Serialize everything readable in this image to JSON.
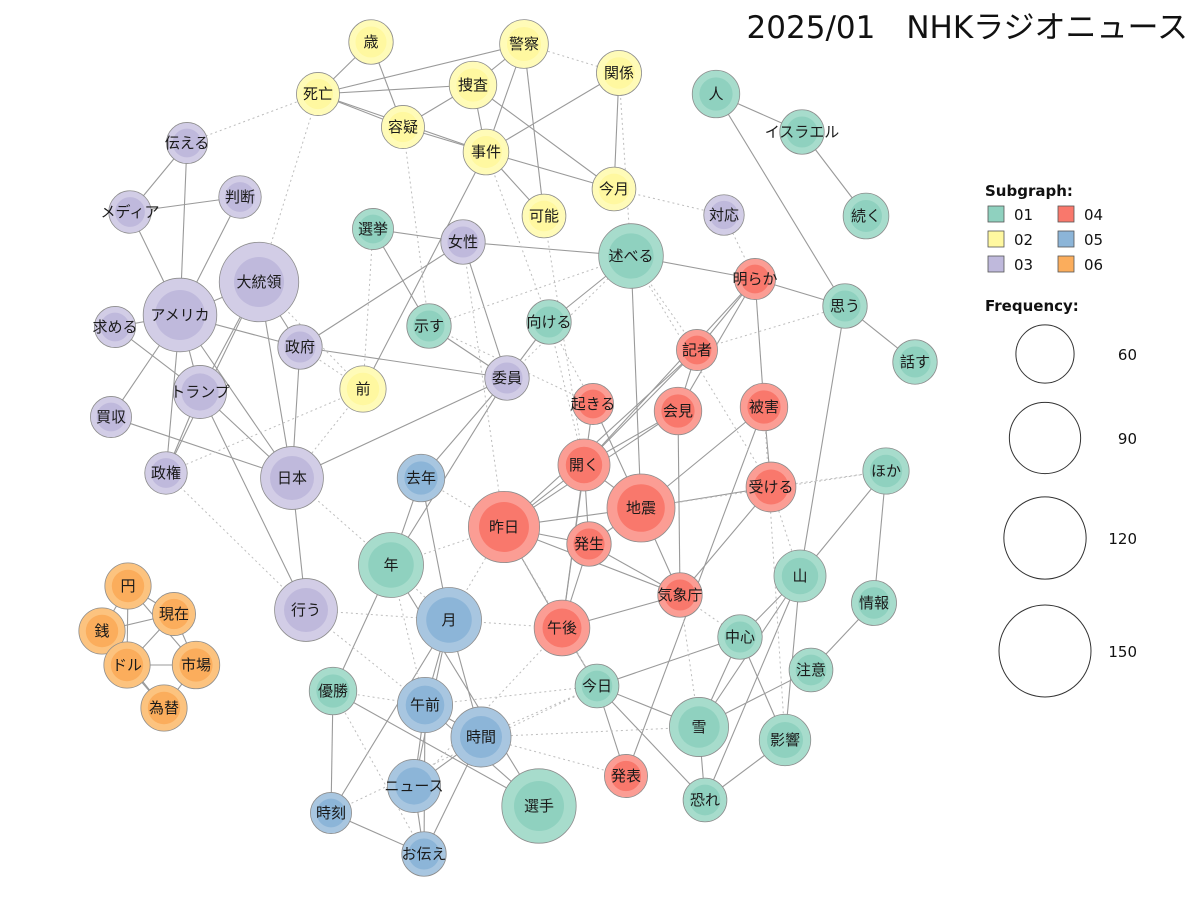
{
  "title": "2025/01　NHKラジオニュース",
  "legend": {
    "subgraph_title": "Subgraph:",
    "frequency_title": "Frequency:",
    "groups": [
      {
        "id": "01",
        "label": "01",
        "fill": "#a7dccc",
        "core": "#8fd1bf"
      },
      {
        "id": "02",
        "label": "02",
        "fill": "#fffbb8",
        "core": "#fff8a0"
      },
      {
        "id": "03",
        "label": "03",
        "fill": "#d2cde6",
        "core": "#bfb9dc"
      },
      {
        "id": "04",
        "label": "04",
        "fill": "#fb9d94",
        "core": "#f9786c"
      },
      {
        "id": "05",
        "label": "05",
        "fill": "#a8c6e0",
        "core": "#8cb5d8"
      },
      {
        "id": "06",
        "label": "06",
        "fill": "#fcc37f",
        "core": "#fbad5c"
      }
    ],
    "frequencies": [
      {
        "value": 60,
        "label": "60"
      },
      {
        "value": 90,
        "label": "90"
      },
      {
        "value": 120,
        "label": "120"
      },
      {
        "value": 150,
        "label": "150"
      }
    ]
  },
  "nodes": [
    {
      "id": "人",
      "label": "人",
      "group": "01",
      "freq": 40
    },
    {
      "id": "イスラエル",
      "label": "イスラエル",
      "group": "01",
      "freq": 35
    },
    {
      "id": "続く",
      "label": "続く",
      "group": "01",
      "freq": 37
    },
    {
      "id": "思う",
      "label": "思う",
      "group": "01",
      "freq": 35
    },
    {
      "id": "話す",
      "label": "話す",
      "group": "01",
      "freq": 35
    },
    {
      "id": "ほか",
      "label": "ほか",
      "group": "01",
      "freq": 38
    },
    {
      "id": "情報",
      "label": "情報",
      "group": "01",
      "freq": 36
    },
    {
      "id": "山",
      "label": "山",
      "group": "01",
      "freq": 48
    },
    {
      "id": "注意",
      "label": "注意",
      "group": "01",
      "freq": 34
    },
    {
      "id": "中心",
      "label": "中心",
      "group": "01",
      "freq": 35
    },
    {
      "id": "影響",
      "label": "影響",
      "group": "01",
      "freq": 47
    },
    {
      "id": "雪",
      "label": "雪",
      "group": "01",
      "freq": 62
    },
    {
      "id": "恐れ",
      "label": "恐れ",
      "group": "01",
      "freq": 34
    },
    {
      "id": "今日",
      "label": "今日",
      "group": "01",
      "freq": 34
    },
    {
      "id": "選手",
      "label": "選手",
      "group": "01",
      "freq": 98
    },
    {
      "id": "優勝",
      "label": "優勝",
      "group": "01",
      "freq": 40
    },
    {
      "id": "年",
      "label": "年",
      "group": "01",
      "freq": 75
    },
    {
      "id": "選挙",
      "label": "選挙",
      "group": "01",
      "freq": 30
    },
    {
      "id": "示す",
      "label": "示す",
      "group": "01",
      "freq": 35
    },
    {
      "id": "向ける",
      "label": "向ける",
      "group": "01",
      "freq": 35
    },
    {
      "id": "述べる",
      "label": "述べる",
      "group": "01",
      "freq": 74
    },
    {
      "id": "歳",
      "label": "歳",
      "group": "02",
      "freq": 35
    },
    {
      "id": "警察",
      "label": "警察",
      "group": "02",
      "freq": 42
    },
    {
      "id": "関係",
      "label": "関係",
      "group": "02",
      "freq": 36
    },
    {
      "id": "死亡",
      "label": "死亡",
      "group": "02",
      "freq": 33
    },
    {
      "id": "捜査",
      "label": "捜査",
      "group": "02",
      "freq": 40
    },
    {
      "id": "容疑",
      "label": "容疑",
      "group": "02",
      "freq": 33
    },
    {
      "id": "事件",
      "label": "事件",
      "group": "02",
      "freq": 37
    },
    {
      "id": "今月",
      "label": "今月",
      "group": "02",
      "freq": 34
    },
    {
      "id": "可能",
      "label": "可能",
      "group": "02",
      "freq": 34
    },
    {
      "id": "前",
      "label": "前",
      "group": "02",
      "freq": 38
    },
    {
      "id": "伝える",
      "label": "伝える",
      "group": "03",
      "freq": 30
    },
    {
      "id": "判断",
      "label": "判断",
      "group": "03",
      "freq": 32
    },
    {
      "id": "メディア",
      "label": "メディア",
      "group": "03",
      "freq": 32
    },
    {
      "id": "大統領",
      "label": "大統領",
      "group": "03",
      "freq": 112
    },
    {
      "id": "アメリカ",
      "label": "アメリカ",
      "group": "03",
      "freq": 96
    },
    {
      "id": "求める",
      "label": "求める",
      "group": "03",
      "freq": 30
    },
    {
      "id": "政府",
      "label": "政府",
      "group": "03",
      "freq": 35
    },
    {
      "id": "トランプ",
      "label": "トランプ",
      "group": "03",
      "freq": 50
    },
    {
      "id": "買収",
      "label": "買収",
      "group": "03",
      "freq": 30
    },
    {
      "id": "政権",
      "label": "政権",
      "group": "03",
      "freq": 32
    },
    {
      "id": "日本",
      "label": "日本",
      "group": "03",
      "freq": 70
    },
    {
      "id": "行う",
      "label": "行う",
      "group": "03",
      "freq": 70
    },
    {
      "id": "女性",
      "label": "女性",
      "group": "03",
      "freq": 35
    },
    {
      "id": "委員",
      "label": "委員",
      "group": "03",
      "freq": 35
    },
    {
      "id": "対応",
      "label": "対応",
      "group": "03",
      "freq": 29
    },
    {
      "id": "明らか",
      "label": "明らか",
      "group": "04",
      "freq": 30
    },
    {
      "id": "記者",
      "label": "記者",
      "group": "04",
      "freq": 30
    },
    {
      "id": "起きる",
      "label": "起きる",
      "group": "04",
      "freq": 30
    },
    {
      "id": "会見",
      "label": "会見",
      "group": "04",
      "freq": 40
    },
    {
      "id": "被害",
      "label": "被害",
      "group": "04",
      "freq": 40
    },
    {
      "id": "開く",
      "label": "開く",
      "group": "04",
      "freq": 48
    },
    {
      "id": "地震",
      "label": "地震",
      "group": "04",
      "freq": 82
    },
    {
      "id": "受ける",
      "label": "受ける",
      "group": "04",
      "freq": 44
    },
    {
      "id": "昨日",
      "label": "昨日",
      "group": "04",
      "freq": 90
    },
    {
      "id": "発生",
      "label": "発生",
      "group": "04",
      "freq": 35
    },
    {
      "id": "気象庁",
      "label": "気象庁",
      "group": "04",
      "freq": 35
    },
    {
      "id": "午後",
      "label": "午後",
      "group": "04",
      "freq": 55
    },
    {
      "id": "発表",
      "label": "発表",
      "group": "04",
      "freq": 33
    },
    {
      "id": "去年",
      "label": "去年",
      "group": "05",
      "freq": 40
    },
    {
      "id": "月",
      "label": "月",
      "group": "05",
      "freq": 75
    },
    {
      "id": "午前",
      "label": "午前",
      "group": "05",
      "freq": 54
    },
    {
      "id": "時間",
      "label": "時間",
      "group": "05",
      "freq": 64
    },
    {
      "id": "ニュース",
      "label": "ニュース",
      "group": "05",
      "freq": 50
    },
    {
      "id": "時刻",
      "label": "時刻",
      "group": "05",
      "freq": 30
    },
    {
      "id": "お伝え",
      "label": "お伝え",
      "group": "05",
      "freq": 35
    },
    {
      "id": "円",
      "label": "円",
      "group": "06",
      "freq": 38
    },
    {
      "id": "現在",
      "label": "現在",
      "group": "06",
      "freq": 33
    },
    {
      "id": "銭",
      "label": "銭",
      "group": "06",
      "freq": 38
    },
    {
      "id": "ドル",
      "label": "ドル",
      "group": "06",
      "freq": 38
    },
    {
      "id": "市場",
      "label": "市場",
      "group": "06",
      "freq": 40
    },
    {
      "id": "為替",
      "label": "為替",
      "group": "06",
      "freq": 38
    }
  ],
  "edges": [
    [
      "人",
      "イスラエル",
      "s"
    ],
    [
      "人",
      "思う",
      "s"
    ],
    [
      "イスラエル",
      "続く",
      "s"
    ],
    [
      "思う",
      "話す",
      "s"
    ],
    [
      "思う",
      "明らか",
      "s"
    ],
    [
      "思う",
      "山",
      "s"
    ],
    [
      "ほか",
      "情報",
      "s"
    ],
    [
      "ほか",
      "山",
      "s"
    ],
    [
      "情報",
      "注意",
      "s"
    ],
    [
      "山",
      "中心",
      "s"
    ],
    [
      "山",
      "雪",
      "s"
    ],
    [
      "山",
      "影響",
      "s"
    ],
    [
      "山",
      "恐れ",
      "s"
    ],
    [
      "中心",
      "雪",
      "s"
    ],
    [
      "中心",
      "今日",
      "s"
    ],
    [
      "中心",
      "影響",
      "s"
    ],
    [
      "注意",
      "雪",
      "s"
    ],
    [
      "影響",
      "恐れ",
      "s"
    ],
    [
      "雪",
      "恐れ",
      "s"
    ],
    [
      "今日",
      "雪",
      "s"
    ],
    [
      "今日",
      "恐れ",
      "s"
    ],
    [
      "今日",
      "発表",
      "s"
    ],
    [
      "今日",
      "午後",
      "s"
    ],
    [
      "選手",
      "優勝",
      "s"
    ],
    [
      "選手",
      "年",
      "s"
    ],
    [
      "選手",
      "午前",
      "s"
    ],
    [
      "年",
      "優勝",
      "s"
    ],
    [
      "年",
      "去年",
      "s"
    ],
    [
      "選挙",
      "女性",
      "s"
    ],
    [
      "選挙",
      "示す",
      "s"
    ],
    [
      "女性",
      "述べる",
      "s"
    ],
    [
      "女性",
      "委員",
      "s"
    ],
    [
      "示す",
      "委員",
      "s"
    ],
    [
      "向ける",
      "述べる",
      "s"
    ],
    [
      "向ける",
      "委員",
      "s"
    ],
    [
      "述べる",
      "明らか",
      "s"
    ],
    [
      "述べる",
      "示す",
      "d"
    ],
    [
      "歳",
      "死亡",
      "s"
    ],
    [
      "歳",
      "容疑",
      "s"
    ],
    [
      "死亡",
      "警察",
      "s"
    ],
    [
      "死亡",
      "捜査",
      "s"
    ],
    [
      "死亡",
      "事件",
      "s"
    ],
    [
      "死亡",
      "容疑",
      "s"
    ],
    [
      "警察",
      "捜査",
      "s"
    ],
    [
      "警察",
      "事件",
      "s"
    ],
    [
      "警察",
      "可能",
      "s"
    ],
    [
      "捜査",
      "容疑",
      "s"
    ],
    [
      "捜査",
      "事件",
      "s"
    ],
    [
      "捜査",
      "今月",
      "s"
    ],
    [
      "関係",
      "事件",
      "s"
    ],
    [
      "関係",
      "今月",
      "s"
    ],
    [
      "容疑",
      "事件",
      "s"
    ],
    [
      "事件",
      "今月",
      "s"
    ],
    [
      "事件",
      "可能",
      "s"
    ],
    [
      "事件",
      "前",
      "s"
    ],
    [
      "伝える",
      "メディア",
      "s"
    ],
    [
      "伝える",
      "アメリカ",
      "s"
    ],
    [
      "判断",
      "メディア",
      "s"
    ],
    [
      "判断",
      "アメリカ",
      "s"
    ],
    [
      "メディア",
      "アメリカ",
      "s"
    ],
    [
      "大統領",
      "アメリカ",
      "s"
    ],
    [
      "大統領",
      "トランプ",
      "s"
    ],
    [
      "大統領",
      "政府",
      "s"
    ],
    [
      "大統領",
      "政権",
      "s"
    ],
    [
      "大統領",
      "日本",
      "s"
    ],
    [
      "アメリカ",
      "求める",
      "s"
    ],
    [
      "アメリカ",
      "政府",
      "s"
    ],
    [
      "アメリカ",
      "トランプ",
      "s"
    ],
    [
      "アメリカ",
      "買収",
      "s"
    ],
    [
      "アメリカ",
      "政権",
      "s"
    ],
    [
      "アメリカ",
      "日本",
      "s"
    ],
    [
      "求める",
      "トランプ",
      "s"
    ],
    [
      "政府",
      "日本",
      "s"
    ],
    [
      "政府",
      "委員",
      "s"
    ],
    [
      "政府",
      "女性",
      "s"
    ],
    [
      "トランプ",
      "政権",
      "s"
    ],
    [
      "トランプ",
      "行う",
      "s"
    ],
    [
      "トランプ",
      "日本",
      "s"
    ],
    [
      "買収",
      "日本",
      "s"
    ],
    [
      "日本",
      "行う",
      "s"
    ],
    [
      "日本",
      "委員",
      "s"
    ],
    [
      "委員",
      "年",
      "s"
    ],
    [
      "明らか",
      "記者",
      "s"
    ],
    [
      "明らか",
      "被害",
      "s"
    ],
    [
      "明らか",
      "会見",
      "s"
    ],
    [
      "明らか",
      "開く",
      "s"
    ],
    [
      "記者",
      "会見",
      "s"
    ],
    [
      "記者",
      "開く",
      "s"
    ],
    [
      "記者",
      "昨日",
      "s"
    ],
    [
      "起きる",
      "地震",
      "s"
    ],
    [
      "起きる",
      "午後",
      "s"
    ],
    [
      "会見",
      "開く",
      "s"
    ],
    [
      "会見",
      "昨日",
      "s"
    ],
    [
      "会見",
      "気象庁",
      "s"
    ],
    [
      "被害",
      "受ける",
      "s"
    ],
    [
      "被害",
      "地震",
      "s"
    ],
    [
      "開く",
      "昨日",
      "s"
    ],
    [
      "開く",
      "地震",
      "s"
    ],
    [
      "開く",
      "午後",
      "s"
    ],
    [
      "開く",
      "発生",
      "s"
    ],
    [
      "地震",
      "受ける",
      "s"
    ],
    [
      "地震",
      "発生",
      "s"
    ],
    [
      "地震",
      "気象庁",
      "s"
    ],
    [
      "地震",
      "昨日",
      "s"
    ],
    [
      "受ける",
      "気象庁",
      "s"
    ],
    [
      "昨日",
      "発生",
      "s"
    ],
    [
      "昨日",
      "午後",
      "s"
    ],
    [
      "昨日",
      "気象庁",
      "s"
    ],
    [
      "発生",
      "午後",
      "s"
    ],
    [
      "発生",
      "気象庁",
      "s"
    ],
    [
      "午後",
      "気象庁",
      "s"
    ],
    [
      "述べる",
      "地震",
      "s"
    ],
    [
      "被害",
      "発表",
      "s"
    ],
    [
      "去年",
      "月",
      "s"
    ],
    [
      "去年",
      "委員",
      "s"
    ],
    [
      "月",
      "午前",
      "s"
    ],
    [
      "月",
      "時間",
      "s"
    ],
    [
      "月",
      "ニュース",
      "s"
    ],
    [
      "月",
      "時刻",
      "s"
    ],
    [
      "午前",
      "時間",
      "s"
    ],
    [
      "午前",
      "ニュース",
      "s"
    ],
    [
      "午前",
      "お伝え",
      "s"
    ],
    [
      "時間",
      "ニュース",
      "s"
    ],
    [
      "時間",
      "お伝え",
      "s"
    ],
    [
      "ニュース",
      "お伝え",
      "s"
    ],
    [
      "時刻",
      "お伝え",
      "s"
    ],
    [
      "時刻",
      "優勝",
      "s"
    ],
    [
      "円",
      "現在",
      "s"
    ],
    [
      "円",
      "銭",
      "s"
    ],
    [
      "円",
      "ドル",
      "s"
    ],
    [
      "円",
      "市場",
      "s"
    ],
    [
      "現在",
      "銭",
      "s"
    ],
    [
      "現在",
      "ドル",
      "s"
    ],
    [
      "現在",
      "市場",
      "s"
    ],
    [
      "銭",
      "ドル",
      "s"
    ],
    [
      "銭",
      "為替",
      "s"
    ],
    [
      "ドル",
      "市場",
      "s"
    ],
    [
      "ドル",
      "為替",
      "s"
    ],
    [
      "市場",
      "為替",
      "s"
    ],
    [
      "伝える",
      "死亡",
      "d"
    ],
    [
      "死亡",
      "大統領",
      "d"
    ],
    [
      "警察",
      "関係",
      "d"
    ],
    [
      "関係",
      "述べる",
      "d"
    ],
    [
      "今月",
      "対応",
      "d"
    ],
    [
      "対応",
      "明らか",
      "d"
    ],
    [
      "容疑",
      "示す",
      "d"
    ],
    [
      "前",
      "大統領",
      "d"
    ],
    [
      "前",
      "政府",
      "d"
    ],
    [
      "前",
      "日本",
      "d"
    ],
    [
      "前",
      "政権",
      "d"
    ],
    [
      "年",
      "昨日",
      "d"
    ],
    [
      "年",
      "月",
      "d"
    ],
    [
      "年",
      "午前",
      "d"
    ],
    [
      "月",
      "昨日",
      "d"
    ],
    [
      "月",
      "午後",
      "d"
    ],
    [
      "午前",
      "今日",
      "d"
    ],
    [
      "時間",
      "今日",
      "d"
    ],
    [
      "時間",
      "雪",
      "d"
    ],
    [
      "時間",
      "発表",
      "d"
    ],
    [
      "去年",
      "昨日",
      "d"
    ],
    [
      "昨日",
      "今日",
      "d"
    ],
    [
      "午後",
      "今日",
      "d"
    ],
    [
      "述べる",
      "受ける",
      "d"
    ],
    [
      "述べる",
      "記者",
      "d"
    ],
    [
      "受ける",
      "山",
      "d"
    ],
    [
      "気象庁",
      "雪",
      "d"
    ],
    [
      "気象庁",
      "中心",
      "d"
    ],
    [
      "被害",
      "影響",
      "d"
    ],
    [
      "記者",
      "思う",
      "d"
    ],
    [
      "地震",
      "ほか",
      "d"
    ],
    [
      "受ける",
      "ほか",
      "d"
    ],
    [
      "日本",
      "年",
      "d"
    ],
    [
      "委員",
      "述べる",
      "d"
    ],
    [
      "女性",
      "昨日",
      "d"
    ],
    [
      "示す",
      "起きる",
      "d"
    ],
    [
      "向ける",
      "起きる",
      "d"
    ],
    [
      "向ける",
      "開く",
      "d"
    ],
    [
      "選挙",
      "前",
      "d"
    ],
    [
      "今日",
      "時刻",
      "d"
    ],
    [
      "午後",
      "ニュース",
      "d"
    ],
    [
      "優勝",
      "お伝え",
      "d"
    ],
    [
      "事件",
      "向ける",
      "d"
    ],
    [
      "行う",
      "午前",
      "d"
    ],
    [
      "行う",
      "月",
      "d"
    ],
    [
      "可能",
      "開く",
      "d"
    ],
    [
      "政権",
      "行う",
      "d"
    ],
    [
      "優勝",
      "午前",
      "d"
    ]
  ]
}
